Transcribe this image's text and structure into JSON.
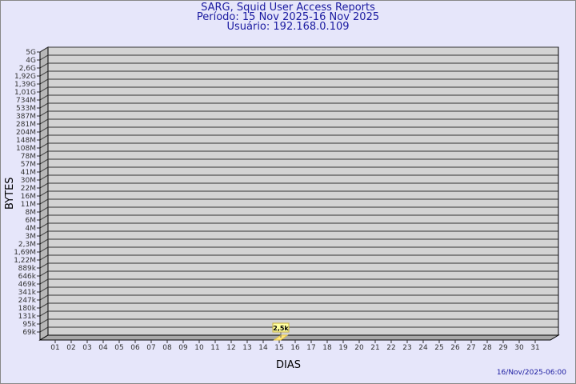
{
  "header": {
    "title": "SARG, Squid User Access Reports",
    "period": "Período: 15 Nov 2025-16 Nov 2025",
    "user": "Usuário: 192.168.0.109"
  },
  "timestamp": "16/Nov/2025-06:00",
  "chart_data": {
    "type": "bar",
    "xlabel": "DIAS",
    "ylabel": "BYTES",
    "y_scale": "log",
    "y_tick_labels": [
      "5G",
      "4G",
      "2,6G",
      "1,92G",
      "1,39G",
      "1,01G",
      "734M",
      "533M",
      "387M",
      "281M",
      "204M",
      "148M",
      "108M",
      "78M",
      "57M",
      "41M",
      "30M",
      "22M",
      "16M",
      "11M",
      "8M",
      "6M",
      "4M",
      "3M",
      "2,3M",
      "1,69M",
      "1,22M",
      "889k",
      "646k",
      "469k",
      "341k",
      "247k",
      "180k",
      "131k",
      "95k",
      "69k"
    ],
    "categories": [
      "01",
      "02",
      "03",
      "04",
      "05",
      "06",
      "07",
      "08",
      "09",
      "10",
      "11",
      "12",
      "13",
      "14",
      "15",
      "16",
      "17",
      "18",
      "19",
      "20",
      "21",
      "22",
      "23",
      "24",
      "25",
      "26",
      "27",
      "28",
      "29",
      "30",
      "31"
    ],
    "bars": [
      {
        "day": "15",
        "label": "2,5k"
      }
    ],
    "grid": true,
    "colors": {
      "plot": "#d3d3d3",
      "bar": "#ffe680",
      "label_bg": "#ffffa0"
    }
  }
}
